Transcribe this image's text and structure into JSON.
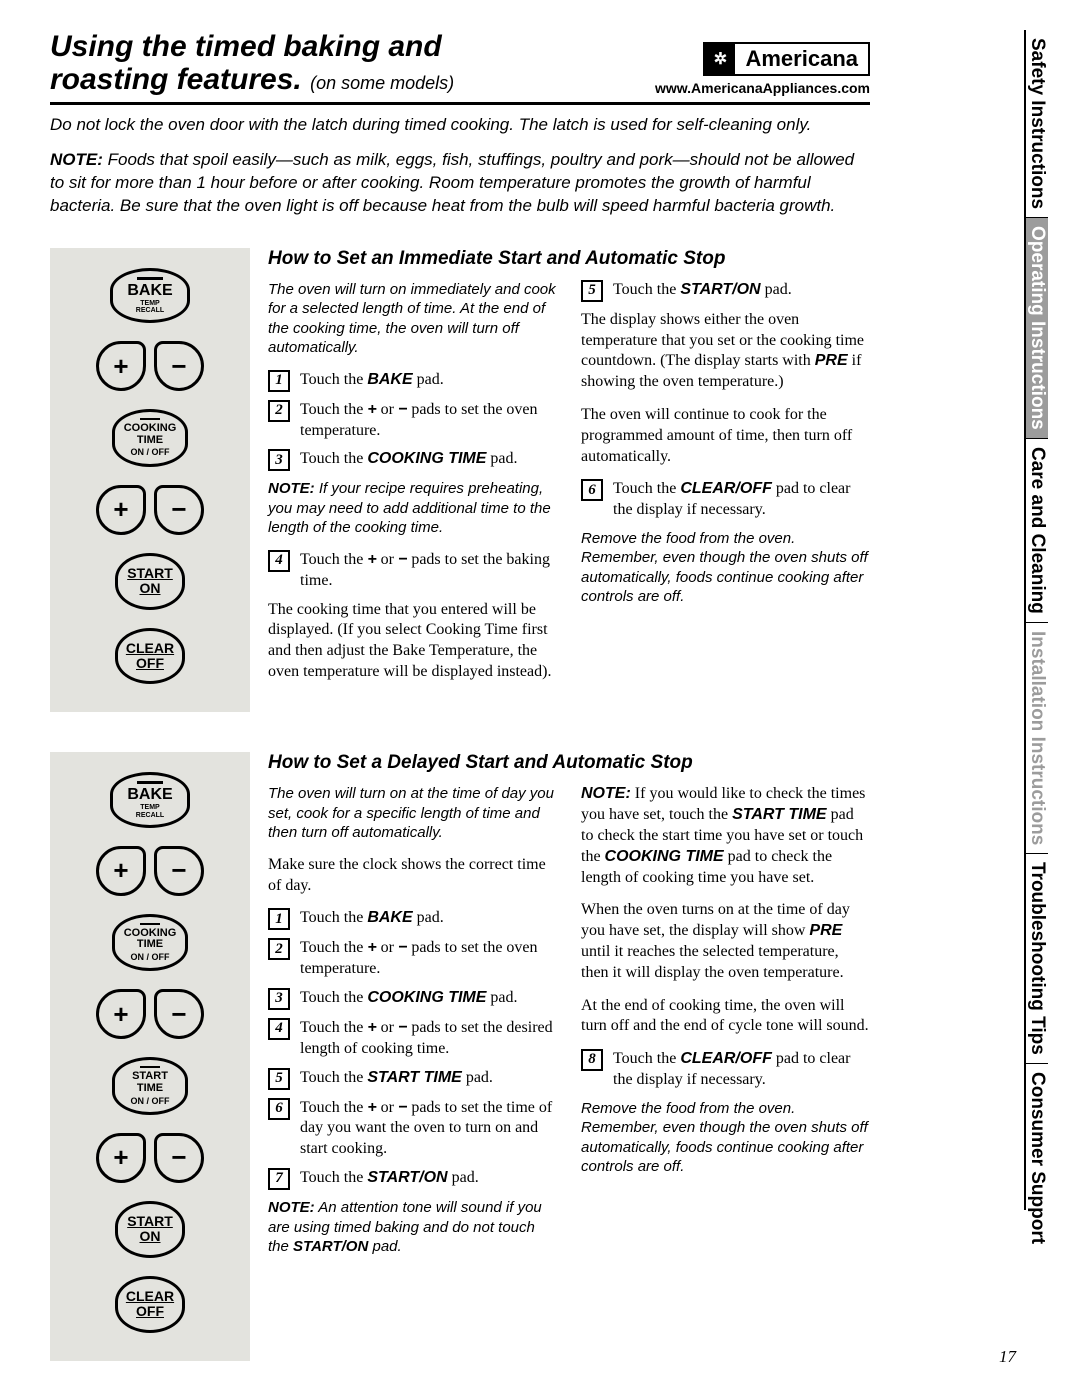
{
  "header": {
    "title_line1": "Using the timed baking and",
    "title_line2": "roasting features.",
    "title_sub": "(on some models)",
    "brand": "Americana",
    "url": "www.AmericanaAppliances.com"
  },
  "warning": "Do not lock the oven door with the latch during timed cooking. The latch is used for self-cleaning only.",
  "note_prefix": "NOTE:",
  "note": "Foods that spoil easily—such as milk, eggs, fish, stuffings, poultry and pork—should not be allowed to sit for more than 1 hour before or after cooking. Room temperature promotes the growth of harmful bacteria. Be sure that the oven light is off because heat from the bulb will speed harmful bacteria growth.",
  "section1": {
    "title": "How to Set an Immediate Start and Automatic Stop",
    "intro": "The oven will turn on immediately and cook for a selected length of time. At the end of the cooking time, the oven will turn off automatically.",
    "steps": [
      "Touch the <b class='arial'>BAKE</b> pad.",
      "Touch the <b class='arial'>+</b> or <b class='arial'>−</b> pads to set the oven temperature.",
      "Touch the <b class='arial'>COOKING TIME</b> pad."
    ],
    "note1_prefix": "NOTE:",
    "note1": "If your recipe requires preheating, you may need to add additional time to the length of the cooking time.",
    "step4": "Touch the <b class='arial'>+</b> or <b class='arial'>−</b> pads to set the baking time.",
    "par1": "The cooking time that you entered will be displayed. (If you select Cooking Time first and then adjust the Bake Temperature, the oven temperature will be displayed instead).",
    "step5": "Touch the <b class='arial'>START/ON</b> pad.",
    "par2": "The display shows either the oven temperature that you set or the cooking time countdown. (The display starts with <b class='arial'>PRE</b> if showing the oven temperature.)",
    "par3": "The oven will continue to cook for the programmed amount of time, then turn off automatically.",
    "step6": "Touch the <b class='arial'>CLEAR/OFF</b> pad to clear the display if necessary.",
    "closing": "Remove the food from the oven. Remember, even though the oven shuts off automatically, foods continue cooking after controls are off."
  },
  "section2": {
    "title": "How to Set a Delayed Start and Automatic Stop",
    "intro": "The oven will turn on at the time of day you set, cook for a specific length of time and then turn off automatically.",
    "par0": "Make sure the clock shows the correct time of day.",
    "steps": [
      "Touch the <b class='arial'>BAKE</b> pad.",
      "Touch the <b class='arial'>+</b> or <b class='arial'>−</b> pads to set the oven temperature.",
      "Touch the <b class='arial'>COOKING TIME</b> pad.",
      "Touch the <b class='arial'>+</b> or <b class='arial'>−</b> pads to set the desired length of cooking time.",
      "Touch the <b class='arial'>START TIME</b> pad.",
      "Touch the <b class='arial'>+</b> or <b class='arial'>−</b> pads to set the time of day you want the oven to turn on and start cooking.",
      "Touch the <b class='arial'>START/ON</b> pad."
    ],
    "note1_prefix": "NOTE:",
    "note1": "An attention tone will sound if you are using timed baking and do not touch the <b class='arial'>START/ON</b> pad.",
    "rnote_prefix": "NOTE:",
    "rnote": "If you would like to check the times you have set, touch the <b class='arial'>START TIME</b> pad to check the start time you have set or touch the <b class='arial'>COOKING TIME</b> pad to check the length of cooking time you have set.",
    "par1": "When the oven turns on at the time of day you have set, the display will show <b class='arial'>PRE</b> until it reaches the selected temperature, then it will display the oven temperature.",
    "par2": "At the end of cooking time, the oven will turn off and the end of cycle tone will sound.",
    "step8": "Touch the <b class='arial'>CLEAR/OFF</b> pad to clear the display if necessary.",
    "closing": "Remove the food from the oven. Remember, even though the oven shuts off automatically, foods continue cooking after controls are off."
  },
  "pads": {
    "bake": "BAKE",
    "bake_sub": "TEMP\nRECALL",
    "cook": "COOKING\nTIME",
    "onoff": "ON / OFF",
    "start_time": "START\nTIME",
    "start_on": "START ON",
    "clear_off": "CLEAR OFF"
  },
  "sidebar": [
    {
      "label": "Safety Instructions",
      "inverted": false,
      "gray": false
    },
    {
      "label": "Operating Instructions",
      "inverted": true,
      "gray": false
    },
    {
      "label": "Care and Cleaning",
      "inverted": false,
      "gray": false
    },
    {
      "label": "Installation Instructions",
      "inverted": false,
      "gray": true
    },
    {
      "label": "Troubleshooting Tips",
      "inverted": false,
      "gray": false
    },
    {
      "label": "Consumer Support",
      "inverted": false,
      "gray": false
    }
  ],
  "pagenum": "17",
  "colors": {
    "panel_bg": "#e3e3de",
    "gray_text": "#9c9c9c"
  }
}
